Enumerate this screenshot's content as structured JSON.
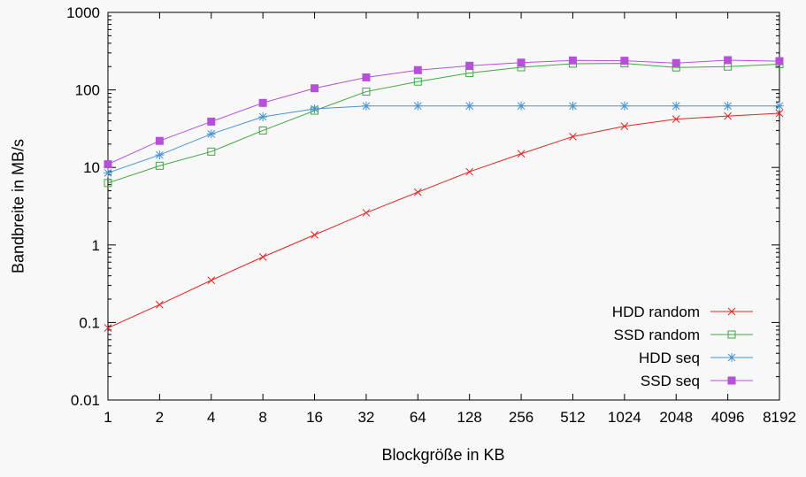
{
  "chart_data": {
    "type": "line",
    "title": "",
    "xlabel": "Blockgröße in KB",
    "ylabel": "Bandbreite in MB/s",
    "xscale": "log2",
    "yscale": "log10",
    "ylim": [
      0.01,
      1000
    ],
    "yticks": [
      "0.01",
      "0.1",
      "1",
      "10",
      "100",
      "1000"
    ],
    "categories": [
      "1",
      "2",
      "4",
      "8",
      "16",
      "32",
      "64",
      "128",
      "256",
      "512",
      "1024",
      "2048",
      "4096",
      "8192"
    ],
    "grid": false,
    "legend_position": "inside-bottom-right",
    "background_color": "#f8f8f8",
    "axis_color": "#000000",
    "series": [
      {
        "name": "HDD random",
        "color": "#e02622",
        "marker": "x",
        "values": [
          0.085,
          0.17,
          0.35,
          0.7,
          1.35,
          2.6,
          4.8,
          8.8,
          15,
          25,
          34,
          42,
          46,
          50
        ]
      },
      {
        "name": "SSD random",
        "color": "#3fa83f",
        "marker": "open-square",
        "values": [
          6.3,
          10.5,
          16,
          30,
          54,
          95,
          128,
          165,
          196,
          218,
          220,
          195,
          200,
          215
        ]
      },
      {
        "name": "HDD seq",
        "color": "#4593d3",
        "marker": "asterisk",
        "values": [
          8.5,
          14.5,
          27,
          45,
          57,
          62,
          62,
          62,
          62,
          62,
          62,
          62,
          62,
          62
        ]
      },
      {
        "name": "SSD seq",
        "color": "#b750d8",
        "marker": "filled-square",
        "values": [
          11,
          22,
          39,
          68,
          105,
          145,
          180,
          205,
          225,
          240,
          238,
          222,
          242,
          235
        ]
      }
    ]
  }
}
